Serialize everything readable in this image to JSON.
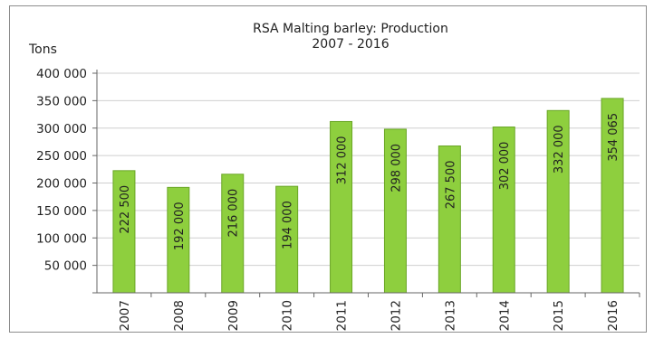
{
  "chart_data": {
    "type": "bar",
    "title": "RSA Malting barley: Production",
    "subtitle": "2007 - 2016",
    "ylabel": "Tons",
    "xlabel": "",
    "categories": [
      "2007",
      "2008",
      "2009",
      "2010",
      "2011",
      "2012",
      "2013",
      "2014",
      "2015",
      "2016"
    ],
    "values": [
      222500,
      192000,
      216000,
      194000,
      312000,
      298000,
      267500,
      302000,
      332000,
      354065
    ],
    "value_labels": [
      "222 500",
      "192 000",
      "216 000",
      "194 000",
      "312 000",
      "298 000",
      "267 500",
      "302 000",
      "332 000",
      "354 065"
    ],
    "ylim": [
      0,
      400000
    ],
    "yticks": [
      0,
      50000,
      100000,
      150000,
      200000,
      250000,
      300000,
      350000,
      400000
    ],
    "ytick_labels": [
      "",
      "50 000",
      "100 000",
      "150 000",
      "200 000",
      "250 000",
      "300 000",
      "350 000",
      "400 000"
    ],
    "grid": "horizontal",
    "legend": "none",
    "bar_color": "#8ecf3e",
    "bar_edge_color": "#6aa626",
    "grid_color": "#cfcfcf"
  }
}
